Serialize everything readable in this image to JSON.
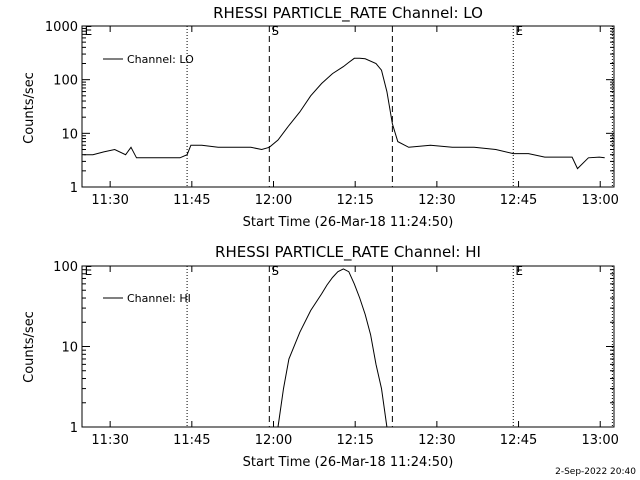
{
  "chart_data": [
    {
      "type": "line",
      "title": "RHESSI PARTICLE_RATE Channel: LO",
      "xlabel": "Start Time (26-Mar-18 11:24:50)",
      "ylabel": "Counts/sec",
      "y_scale": "log",
      "ylim": [
        1,
        1000
      ],
      "y_ticks": [
        "1",
        "10",
        "100",
        "1000"
      ],
      "x_ticks": [
        "11:30",
        "11:45",
        "12:00",
        "12:15",
        "12:30",
        "12:45",
        "13:00"
      ],
      "xlim_minutes_after_11_24_50": [
        0,
        97.7
      ],
      "legend": {
        "placement": "top-left",
        "entries": [
          "Channel: LO"
        ]
      },
      "dotted_lines_minutes": [
        19.3,
        79.2,
        97.4
      ],
      "dashed_lines_minutes": [
        34.4,
        57.0
      ],
      "line_labels": [
        {
          "text": "E",
          "minutes": 0.3
        },
        {
          "text": "S",
          "minutes": 34.6
        },
        {
          "text": "E",
          "minutes": 79.4
        }
      ],
      "series": [
        {
          "name": "Channel: LO",
          "x": [
            0.3,
            2,
            4,
            6,
            8,
            9,
            10,
            12,
            14,
            16,
            18,
            19.3,
            20,
            22,
            25,
            28,
            31,
            33,
            34.4,
            36,
            38,
            40,
            42,
            44,
            46,
            48,
            49,
            50,
            51,
            52,
            54,
            55,
            56,
            57,
            58,
            60,
            64,
            68,
            72,
            76,
            79.2,
            82,
            85,
            88,
            90,
            91,
            93,
            95,
            96
          ],
          "y": [
            4,
            4,
            4.5,
            5,
            4,
            5.5,
            3.5,
            3.5,
            3.5,
            3.5,
            3.5,
            4,
            6,
            6,
            5.5,
            5.5,
            5.5,
            5,
            5.5,
            7.5,
            14,
            25,
            50,
            85,
            130,
            175,
            210,
            250,
            250,
            245,
            200,
            150,
            60,
            15,
            7,
            5.5,
            6,
            5.5,
            5.5,
            5,
            4.2,
            4.2,
            3.6,
            3.6,
            3.6,
            2.2,
            3.5,
            3.6,
            3.5
          ]
        }
      ]
    },
    {
      "type": "line",
      "title": "RHESSI PARTICLE_RATE Channel: HI",
      "xlabel": "Start Time (26-Mar-18 11:24:50)",
      "ylabel": "Counts/sec",
      "y_scale": "log",
      "ylim": [
        1,
        100
      ],
      "y_ticks": [
        "1",
        "10",
        "100"
      ],
      "x_ticks": [
        "11:30",
        "11:45",
        "12:00",
        "12:15",
        "12:30",
        "12:45",
        "13:00"
      ],
      "xlim_minutes_after_11_24_50": [
        0,
        97.7
      ],
      "legend": {
        "placement": "top-left",
        "entries": [
          "Channel: HI"
        ]
      },
      "dotted_lines_minutes": [
        19.3,
        79.2,
        97.4
      ],
      "dashed_lines_minutes": [
        34.4,
        57.0
      ],
      "line_labels": [
        {
          "text": "E",
          "minutes": 0.3
        },
        {
          "text": "S",
          "minutes": 34.6
        },
        {
          "text": "E",
          "minutes": 79.4
        }
      ],
      "series": [
        {
          "name": "Channel: HI",
          "x": [
            36,
            37,
            38,
            40,
            42,
            44,
            45,
            46,
            47,
            48,
            49,
            50,
            51,
            52,
            53,
            54,
            55,
            56
          ],
          "y": [
            1,
            3,
            7,
            15,
            28,
            45,
            58,
            72,
            85,
            92,
            85,
            60,
            40,
            25,
            14,
            6,
            3,
            1
          ]
        }
      ]
    }
  ],
  "timestamp": "2-Sep-2022 20:40"
}
